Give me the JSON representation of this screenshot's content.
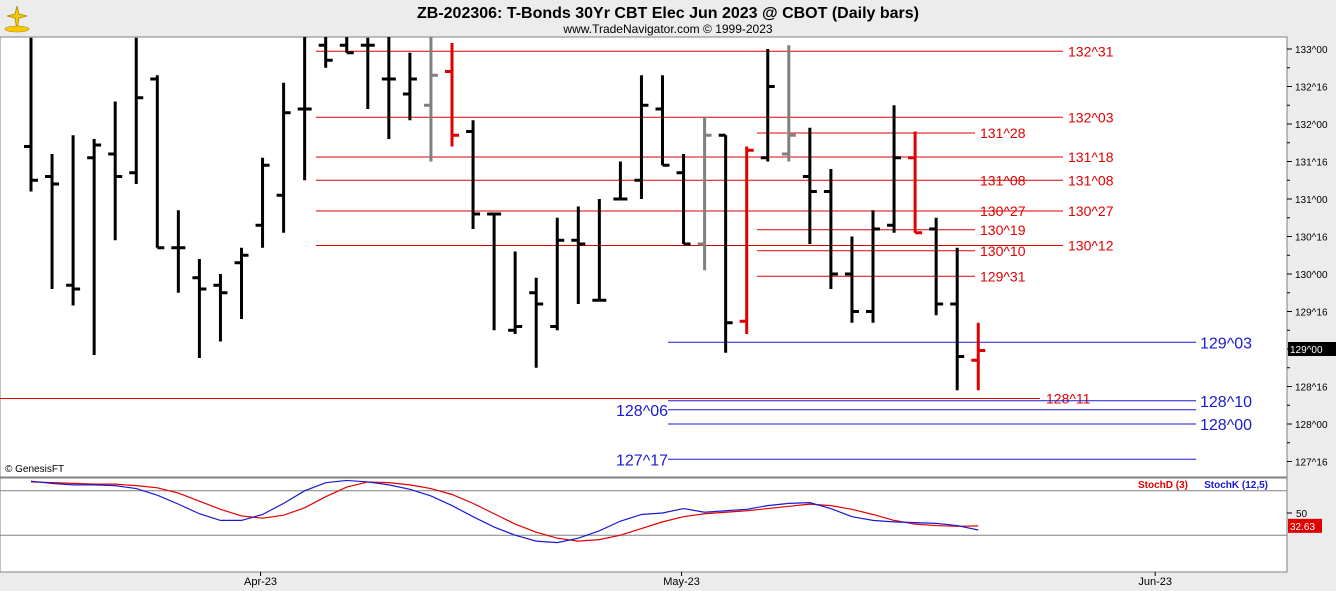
{
  "header": {
    "title": "ZB-202306:  T-Bonds 30Yr CBT Elec Jun 2023 @ CBOT  (Daily bars)",
    "subtitle": "www.TradeNavigator.com © 1999-2023",
    "logo_icon": "trade-navigator-logo-icon"
  },
  "footer": {
    "copyright": "© GenesisFT"
  },
  "colors": {
    "up_bar": "#000000",
    "gray_bar": "#808080",
    "red_bar": "#e00000",
    "red_level": "#e00000",
    "blue_level": "#1a1ad0",
    "stoch_d": "#e00000",
    "stoch_k": "#1a1ad0",
    "panel_bg": "#ffffff",
    "frame_bg": "#ececec"
  },
  "chart_data": [
    {
      "type": "ohlc",
      "title": "ZB-202306:  T-Bonds 30Yr CBT Elec Jun 2023 @ CBOT  (Daily bars)",
      "price_format": "points^32nds",
      "ylim": [
        127.3,
        133.25
      ],
      "y_ticks": [
        "133^00",
        "132^16",
        "132^00",
        "131^16",
        "131^00",
        "130^16",
        "130^00",
        "129^16",
        "129^00",
        "128^16",
        "128^00",
        "127^16"
      ],
      "y_tick_values": [
        133.0,
        132.5,
        132.0,
        131.5,
        131.0,
        130.5,
        130.0,
        129.5,
        129.0,
        128.5,
        128.0,
        127.5
      ],
      "x_ticks": [
        "Apr-23",
        "May-23",
        "Jun-23"
      ],
      "x_tick_bar_index": [
        11,
        31,
        53.5
      ],
      "grid": false,
      "last_price_label": "129^00",
      "last_price_value": 129.0,
      "bars": [
        {
          "i": 0,
          "o": 131.7,
          "h": 133.15,
          "l": 131.1,
          "c": 131.25,
          "color": "black"
        },
        {
          "i": 1,
          "o": 131.3,
          "h": 131.6,
          "l": 129.8,
          "c": 131.2,
          "color": "black"
        },
        {
          "i": 2,
          "o": 129.85,
          "h": 131.85,
          "l": 129.58,
          "c": 129.8,
          "color": "black"
        },
        {
          "i": 3,
          "o": 131.55,
          "h": 131.8,
          "l": 128.92,
          "c": 131.72,
          "color": "black"
        },
        {
          "i": 4,
          "o": 131.6,
          "h": 132.3,
          "l": 130.45,
          "c": 131.3,
          "color": "black"
        },
        {
          "i": 5,
          "o": 131.35,
          "h": 133.15,
          "l": 131.2,
          "c": 132.35,
          "color": "black"
        },
        {
          "i": 6,
          "o": 132.6,
          "h": 132.65,
          "l": 130.35,
          "c": 130.35,
          "color": "black"
        },
        {
          "i": 7,
          "o": 130.35,
          "h": 130.85,
          "l": 129.75,
          "c": 130.35,
          "color": "black"
        },
        {
          "i": 8,
          "o": 129.95,
          "h": 130.2,
          "l": 128.88,
          "c": 129.8,
          "color": "black"
        },
        {
          "i": 9,
          "o": 129.85,
          "h": 130.0,
          "l": 129.1,
          "c": 129.75,
          "color": "black"
        },
        {
          "i": 10,
          "o": 130.15,
          "h": 130.35,
          "l": 129.4,
          "c": 130.25,
          "color": "black"
        },
        {
          "i": 11,
          "o": 130.65,
          "h": 131.55,
          "l": 130.35,
          "c": 131.45,
          "color": "black"
        },
        {
          "i": 12,
          "o": 131.05,
          "h": 132.55,
          "l": 130.55,
          "c": 132.15,
          "color": "black"
        },
        {
          "i": 13,
          "o": 132.2,
          "h": 133.2,
          "l": 131.25,
          "c": 132.2,
          "color": "black"
        },
        {
          "i": 14,
          "o": 133.05,
          "h": 133.2,
          "l": 132.75,
          "c": 132.85,
          "color": "black"
        },
        {
          "i": 15,
          "o": 133.05,
          "h": 133.2,
          "l": 132.95,
          "c": 132.95,
          "color": "black"
        },
        {
          "i": 16,
          "o": 133.05,
          "h": 133.15,
          "l": 132.2,
          "c": 133.05,
          "color": "black"
        },
        {
          "i": 17,
          "o": 132.6,
          "h": 133.2,
          "l": 131.8,
          "c": 132.6,
          "color": "black"
        },
        {
          "i": 18,
          "o": 132.4,
          "h": 132.95,
          "l": 132.05,
          "c": 132.6,
          "color": "black"
        },
        {
          "i": 19,
          "o": 132.25,
          "h": 133.25,
          "l": 131.5,
          "c": 132.65,
          "color": "gray"
        },
        {
          "i": 20,
          "o": 132.7,
          "h": 133.08,
          "l": 131.7,
          "c": 131.85,
          "color": "red"
        },
        {
          "i": 21,
          "o": 131.9,
          "h": 132.05,
          "l": 130.6,
          "c": 130.8,
          "color": "black"
        },
        {
          "i": 22,
          "o": 130.8,
          "h": 130.8,
          "l": 129.25,
          "c": 130.8,
          "color": "black"
        },
        {
          "i": 23,
          "o": 129.25,
          "h": 130.3,
          "l": 129.2,
          "c": 129.3,
          "color": "black"
        },
        {
          "i": 24,
          "o": 129.75,
          "h": 129.95,
          "l": 128.75,
          "c": 129.6,
          "color": "black"
        },
        {
          "i": 25,
          "o": 129.3,
          "h": 130.75,
          "l": 129.25,
          "c": 130.45,
          "color": "black"
        },
        {
          "i": 26,
          "o": 130.45,
          "h": 130.9,
          "l": 129.6,
          "c": 130.4,
          "color": "black"
        },
        {
          "i": 27,
          "o": 129.65,
          "h": 131.0,
          "l": 129.65,
          "c": 129.65,
          "color": "black"
        },
        {
          "i": 28,
          "o": 131.0,
          "h": 131.5,
          "l": 131.0,
          "c": 131.0,
          "color": "black"
        },
        {
          "i": 29,
          "o": 131.25,
          "h": 132.65,
          "l": 131.0,
          "c": 132.25,
          "color": "black"
        },
        {
          "i": 30,
          "o": 132.2,
          "h": 132.65,
          "l": 131.45,
          "c": 131.45,
          "color": "black"
        },
        {
          "i": 31,
          "o": 131.35,
          "h": 131.6,
          "l": 130.4,
          "c": 130.4,
          "color": "black"
        },
        {
          "i": 32,
          "o": 130.4,
          "h": 132.1,
          "l": 130.05,
          "c": 131.85,
          "color": "gray"
        },
        {
          "i": 33,
          "o": 131.85,
          "h": 131.85,
          "l": 128.95,
          "c": 129.35,
          "color": "black"
        },
        {
          "i": 34,
          "o": 129.37,
          "h": 131.7,
          "l": 129.2,
          "c": 131.65,
          "color": "red"
        },
        {
          "i": 35,
          "o": 131.55,
          "h": 133.0,
          "l": 131.5,
          "c": 132.5,
          "color": "black"
        },
        {
          "i": 36,
          "o": 131.6,
          "h": 133.05,
          "l": 131.5,
          "c": 131.85,
          "color": "gray"
        },
        {
          "i": 37,
          "o": 131.3,
          "h": 131.95,
          "l": 130.4,
          "c": 131.1,
          "color": "black"
        },
        {
          "i": 38,
          "o": 131.1,
          "h": 131.4,
          "l": 129.8,
          "c": 130.0,
          "color": "black"
        },
        {
          "i": 39,
          "o": 130.0,
          "h": 130.5,
          "l": 129.35,
          "c": 129.5,
          "color": "black"
        },
        {
          "i": 40,
          "o": 129.5,
          "h": 130.85,
          "l": 129.35,
          "c": 130.6,
          "color": "black"
        },
        {
          "i": 41,
          "o": 130.65,
          "h": 132.25,
          "l": 130.55,
          "c": 131.55,
          "color": "black"
        },
        {
          "i": 42,
          "o": 131.55,
          "h": 131.9,
          "l": 130.55,
          "c": 130.55,
          "color": "red"
        },
        {
          "i": 43,
          "o": 130.6,
          "h": 130.75,
          "l": 129.45,
          "c": 129.6,
          "color": "black"
        },
        {
          "i": 44,
          "o": 129.6,
          "h": 130.35,
          "l": 128.45,
          "c": 128.9,
          "color": "black"
        },
        {
          "i": 45,
          "o": 128.85,
          "h": 129.35,
          "l": 128.45,
          "c": 128.98,
          "color": "red"
        }
      ],
      "levels": [
        {
          "label": "132^31",
          "value": 132.97,
          "color": "red"
        },
        {
          "label": "132^03",
          "value": 132.09,
          "color": "red"
        },
        {
          "label": "131^28",
          "value": 131.88,
          "color": "red"
        },
        {
          "label": "131^18",
          "value": 131.56,
          "color": "red"
        },
        {
          "label": "131^08",
          "value": 131.25,
          "color": "red"
        },
        {
          "label": "131^08",
          "value": 131.25,
          "color": "red"
        },
        {
          "label": "130^27",
          "value": 130.84,
          "color": "red"
        },
        {
          "label": "130^27",
          "value": 130.84,
          "color": "red"
        },
        {
          "label": "130^19",
          "value": 130.59,
          "color": "red"
        },
        {
          "label": "130^12",
          "value": 130.38,
          "color": "red"
        },
        {
          "label": "130^10",
          "value": 130.31,
          "color": "red"
        },
        {
          "label": "129^31",
          "value": 129.97,
          "color": "red"
        },
        {
          "label": "128^11",
          "value": 128.34,
          "color": "red"
        },
        {
          "label": "129^03",
          "value": 129.09,
          "color": "blue"
        },
        {
          "label": "128^10",
          "value": 128.31,
          "color": "blue"
        },
        {
          "label": "128^06",
          "value": 128.19,
          "color": "blue"
        },
        {
          "label": "128^00",
          "value": 128.0,
          "color": "blue"
        },
        {
          "label": "127^17",
          "value": 127.53,
          "color": "blue"
        }
      ]
    },
    {
      "type": "line",
      "title": "",
      "ylim": [
        0,
        100
      ],
      "y_ticks": [
        "50"
      ],
      "y_tick_values": [
        50
      ],
      "reference_lines": [
        80,
        20
      ],
      "series": [
        {
          "name": "StochD (3)",
          "color": "red",
          "last_label": "32.63",
          "values": [
            92,
            91,
            90,
            89,
            89,
            87,
            84,
            77,
            66,
            55,
            46,
            43,
            47,
            57,
            72,
            85,
            92,
            91,
            88,
            83,
            75,
            63,
            49,
            35,
            24,
            16,
            12,
            14,
            20,
            29,
            38,
            45,
            49,
            51,
            53,
            56,
            59,
            62,
            60,
            55,
            48,
            40,
            35,
            33,
            32,
            32.63
          ]
        },
        {
          "name": "StochK (12,5)",
          "color": "blue",
          "last_label": "",
          "values": [
            93,
            90,
            88,
            88,
            87,
            83,
            74,
            62,
            49,
            40,
            40,
            48,
            63,
            80,
            91,
            94,
            92,
            88,
            82,
            73,
            60,
            45,
            31,
            20,
            12,
            10,
            16,
            26,
            39,
            48,
            50,
            56,
            51,
            53,
            55,
            60,
            63,
            64,
            56,
            45,
            40,
            38,
            37,
            36,
            33,
            27
          ]
        }
      ]
    }
  ]
}
